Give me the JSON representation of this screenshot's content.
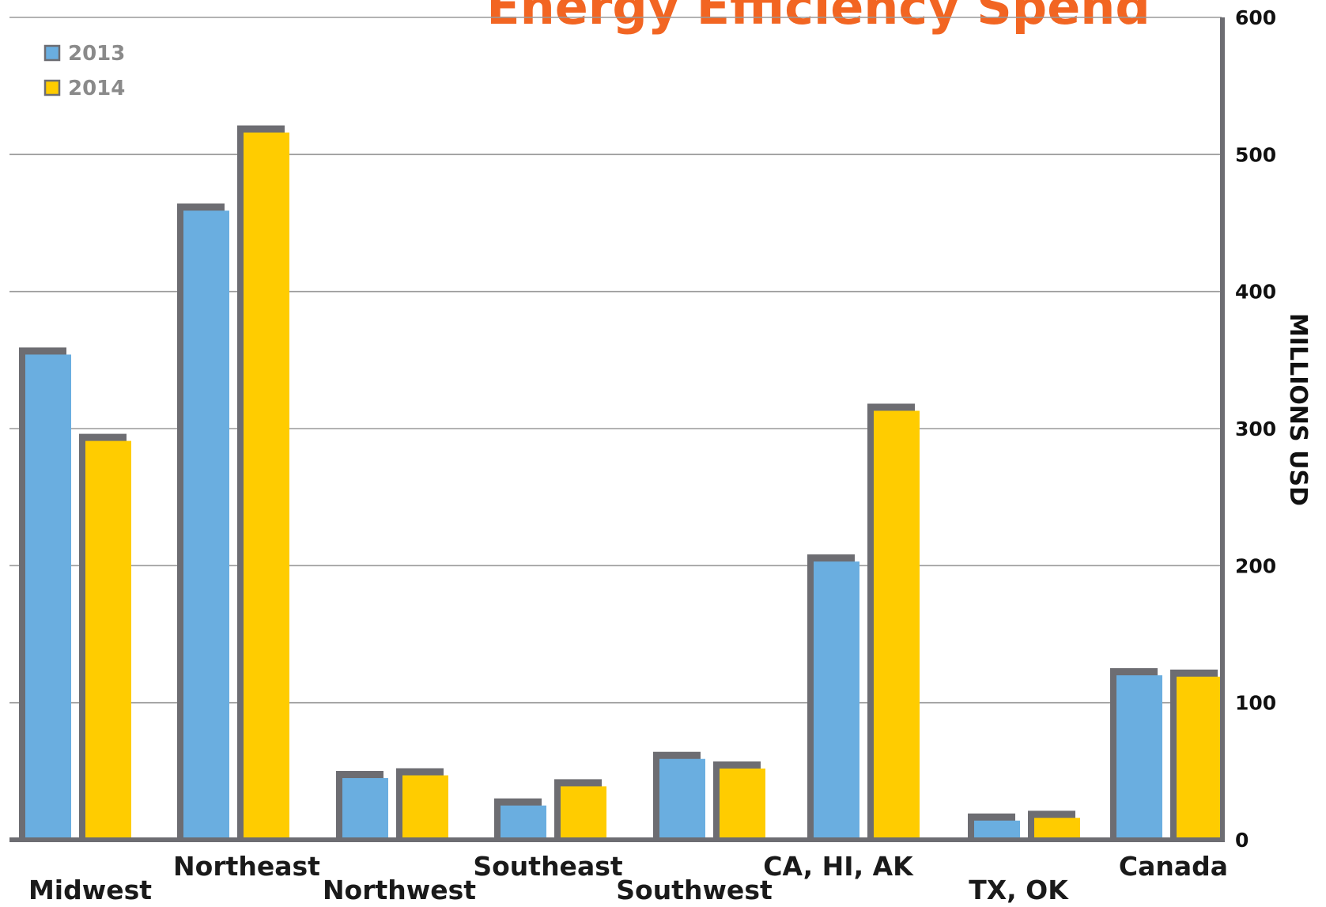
{
  "chart_data": {
    "type": "bar",
    "title": "Energy Efficiency Spend",
    "xlabel": "",
    "ylabel": "MILLIONS USD",
    "ylim": [
      0,
      600
    ],
    "yticks": [
      0,
      100,
      200,
      300,
      400,
      500,
      600
    ],
    "grid": true,
    "legend_position": "top-left",
    "categories": [
      "Midwest",
      "Northeast",
      "Northwest",
      "Southeast",
      "Southwest",
      "CA, HI, AK",
      "TX, OK",
      "Canada"
    ],
    "series": [
      {
        "name": "2013",
        "color": "#6aaee0",
        "values": [
          354,
          459,
          45,
          25,
          59,
          203,
          14,
          120
        ]
      },
      {
        "name": "2014",
        "color": "#ffcc00",
        "values": [
          291,
          516,
          47,
          39,
          52,
          313,
          16,
          119
        ]
      }
    ],
    "shadow_color": "#6d6d72"
  }
}
